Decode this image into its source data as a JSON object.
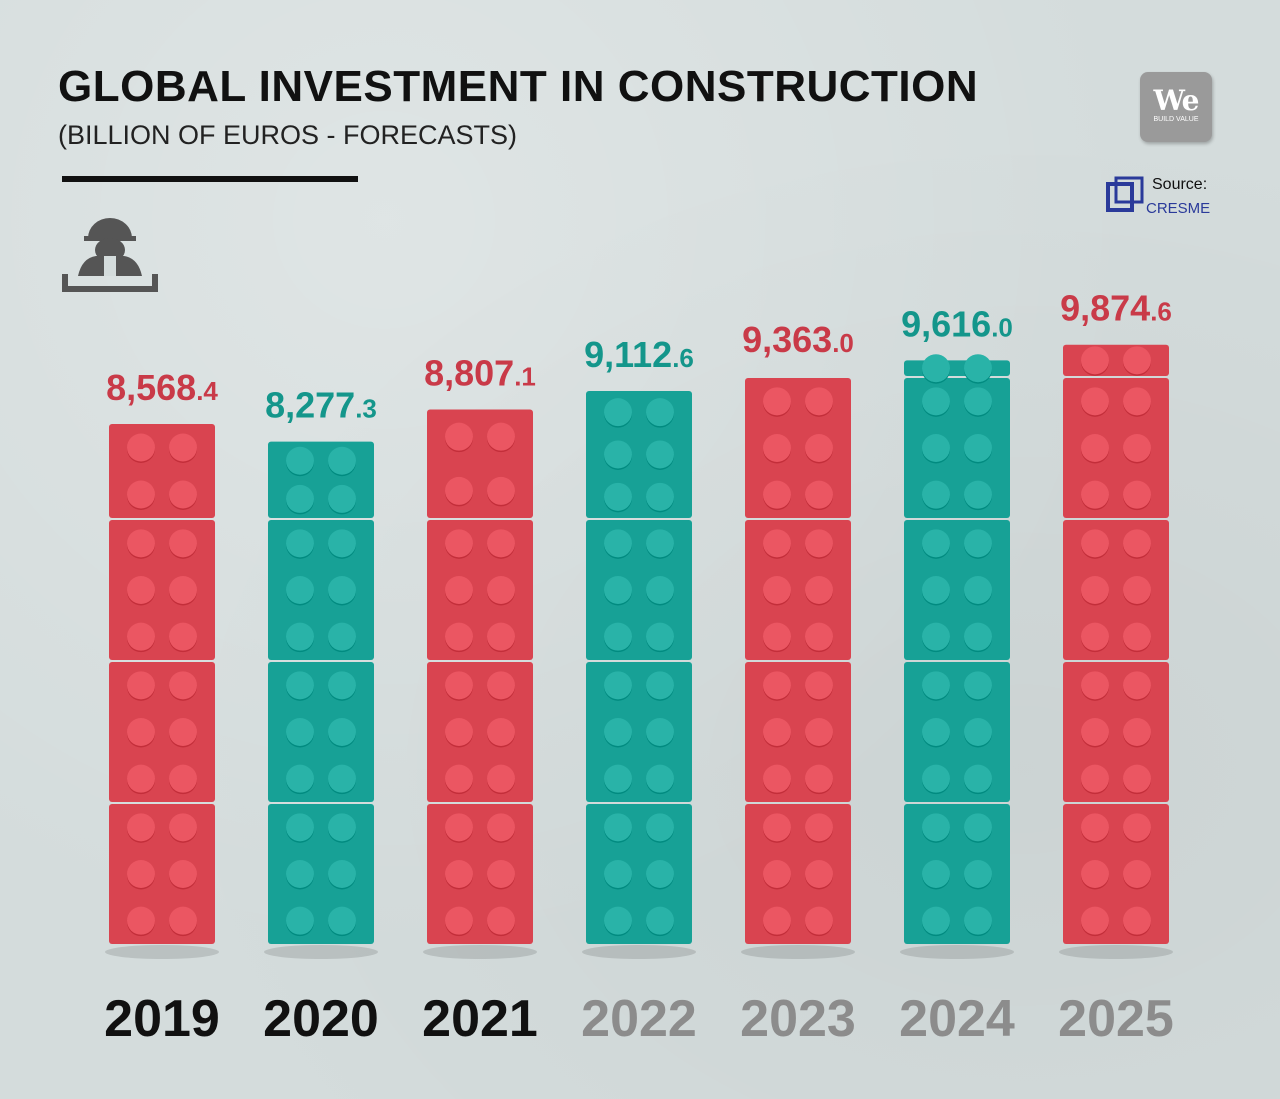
{
  "header": {
    "title": "GLOBAL INVESTMENT IN CONSTRUCTION",
    "subtitle": "(BILLION OF EUROS - FORECASTS)"
  },
  "icons": {
    "worker": "construction-worker-icon",
    "source": "cresme-logo-icon",
    "brand": "we-build-value-logo"
  },
  "logo": {
    "text": "We",
    "sub": "BUILD VALUE"
  },
  "source": {
    "label": "Source:",
    "name": "CRESME"
  },
  "colors": {
    "red": "#d94450",
    "teal": "#17a196",
    "label_red": "#c93a48",
    "label_teal": "#14968b",
    "year_dark": "#111111",
    "year_light": "#8c8c8c",
    "background": "#d4dcdc"
  },
  "chart_data": {
    "type": "bar",
    "categories": [
      "2019",
      "2020",
      "2021",
      "2022",
      "2023",
      "2024",
      "2025"
    ],
    "values": [
      8568.4,
      8277.3,
      8807.1,
      9112.6,
      9363.0,
      9616.0,
      9874.6
    ],
    "value_labels": [
      {
        "main": "8,568",
        "dec": ".4"
      },
      {
        "main": "8,277",
        "dec": ".3"
      },
      {
        "main": "8,807",
        "dec": ".1"
      },
      {
        "main": "9,112",
        "dec": ".6"
      },
      {
        "main": "9,363",
        "dec": ".0"
      },
      {
        "main": "9,616",
        "dec": ".0"
      },
      {
        "main": "9,874",
        "dec": ".6"
      }
    ],
    "bar_colors": [
      "red",
      "teal",
      "red",
      "teal",
      "red",
      "teal",
      "red"
    ],
    "forecast": [
      false,
      false,
      false,
      true,
      true,
      true,
      true
    ],
    "unit": "billion of euros"
  }
}
